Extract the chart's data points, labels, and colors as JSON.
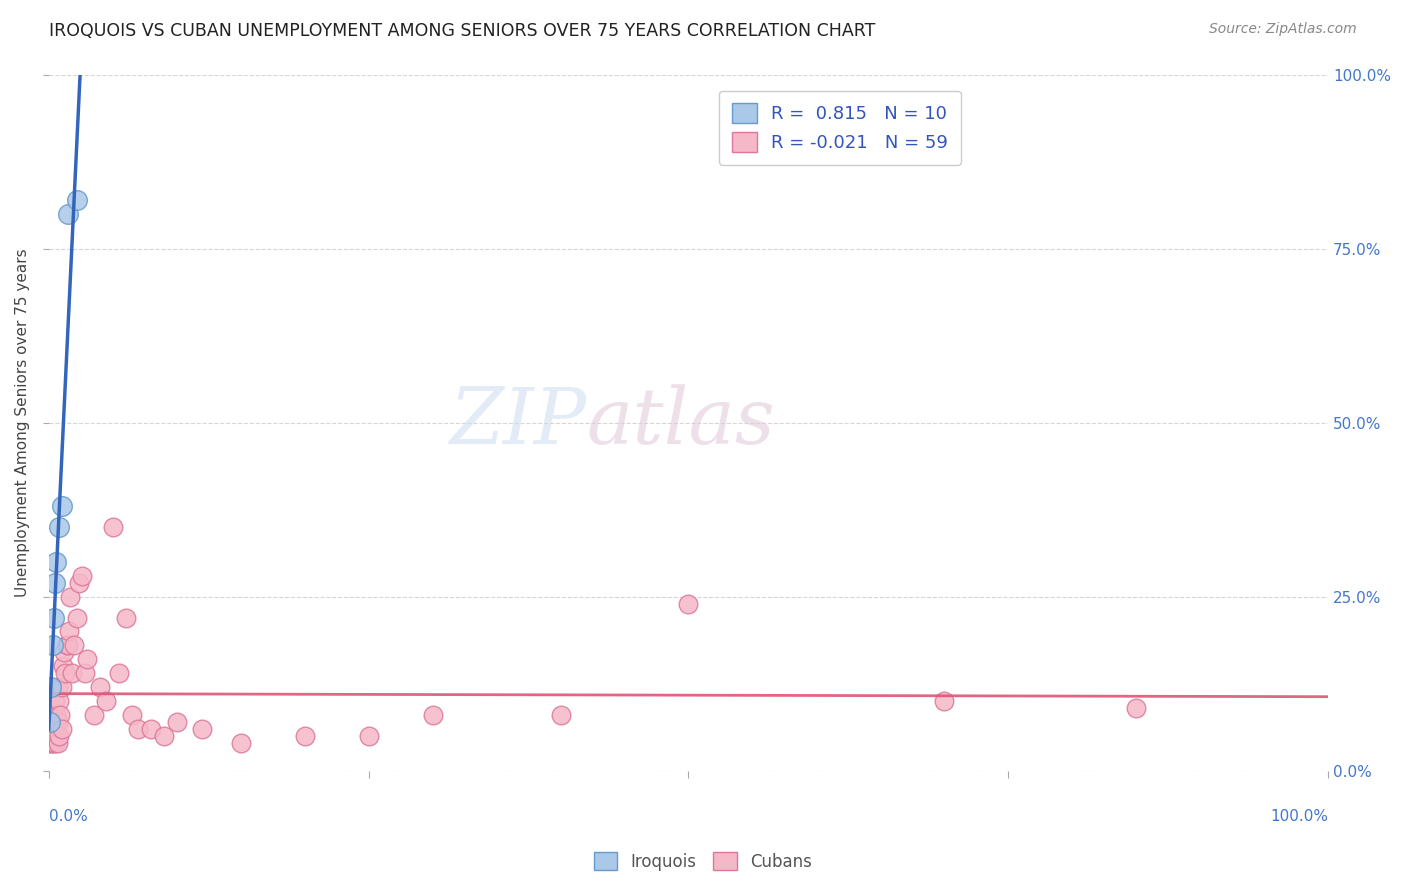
{
  "title": "IROQUOIS VS CUBAN UNEMPLOYMENT AMONG SENIORS OVER 75 YEARS CORRELATION CHART",
  "source": "Source: ZipAtlas.com",
  "ylabel": "Unemployment Among Seniors over 75 years",
  "watermark_zip": "ZIP",
  "watermark_atlas": "atlas",
  "iroquois_color": "#aac8e8",
  "iroquois_edge": "#6699cc",
  "cubans_color": "#f5b8c8",
  "cubans_edge": "#dd7799",
  "trend_iroquois_color": "#3366bb",
  "trend_cubans_color": "#dd5577",
  "legend_label_1": "R =  0.815   N = 10",
  "legend_label_2": "R = -0.021   N = 59",
  "legend_text_color": "#3355bb",
  "ytick_color": "#4477cc",
  "xtick_color": "#4477cc",
  "background_color": "#ffffff",
  "grid_color": "#cccccc",
  "iroquois_x": [
    0.001,
    0.002,
    0.003,
    0.004,
    0.005,
    0.006,
    0.008,
    0.01,
    0.015,
    0.022
  ],
  "iroquois_y": [
    0.07,
    0.12,
    0.18,
    0.22,
    0.27,
    0.3,
    0.35,
    0.38,
    0.8,
    0.82
  ],
  "cubans_x": [
    0.001,
    0.001,
    0.001,
    0.002,
    0.002,
    0.002,
    0.003,
    0.003,
    0.003,
    0.004,
    0.004,
    0.004,
    0.005,
    0.005,
    0.005,
    0.006,
    0.006,
    0.007,
    0.007,
    0.007,
    0.008,
    0.008,
    0.009,
    0.01,
    0.01,
    0.011,
    0.012,
    0.013,
    0.014,
    0.015,
    0.016,
    0.017,
    0.018,
    0.02,
    0.022,
    0.024,
    0.026,
    0.028,
    0.03,
    0.035,
    0.04,
    0.045,
    0.05,
    0.055,
    0.06,
    0.065,
    0.07,
    0.08,
    0.09,
    0.1,
    0.12,
    0.15,
    0.2,
    0.25,
    0.3,
    0.4,
    0.5,
    0.7,
    0.85
  ],
  "cubans_y": [
    0.04,
    0.06,
    0.08,
    0.04,
    0.06,
    0.08,
    0.04,
    0.06,
    0.08,
    0.05,
    0.07,
    0.1,
    0.04,
    0.06,
    0.1,
    0.05,
    0.08,
    0.04,
    0.07,
    0.12,
    0.05,
    0.1,
    0.08,
    0.06,
    0.12,
    0.15,
    0.17,
    0.14,
    0.18,
    0.18,
    0.2,
    0.25,
    0.14,
    0.18,
    0.22,
    0.27,
    0.28,
    0.14,
    0.16,
    0.08,
    0.12,
    0.1,
    0.35,
    0.14,
    0.22,
    0.08,
    0.06,
    0.06,
    0.05,
    0.07,
    0.06,
    0.04,
    0.05,
    0.05,
    0.08,
    0.08,
    0.24,
    0.1,
    0.09
  ],
  "xlim": [
    0.0,
    1.0
  ],
  "ylim": [
    0.0,
    1.0
  ],
  "ytick_vals": [
    0.0,
    0.25,
    0.5,
    0.75,
    1.0
  ],
  "ytick_labels": [
    "0.0%",
    "25.0%",
    "50.0%",
    "75.0%",
    "100.0%"
  ],
  "xtick_vals": [
    0.0,
    0.25,
    0.5,
    0.75,
    1.0
  ]
}
